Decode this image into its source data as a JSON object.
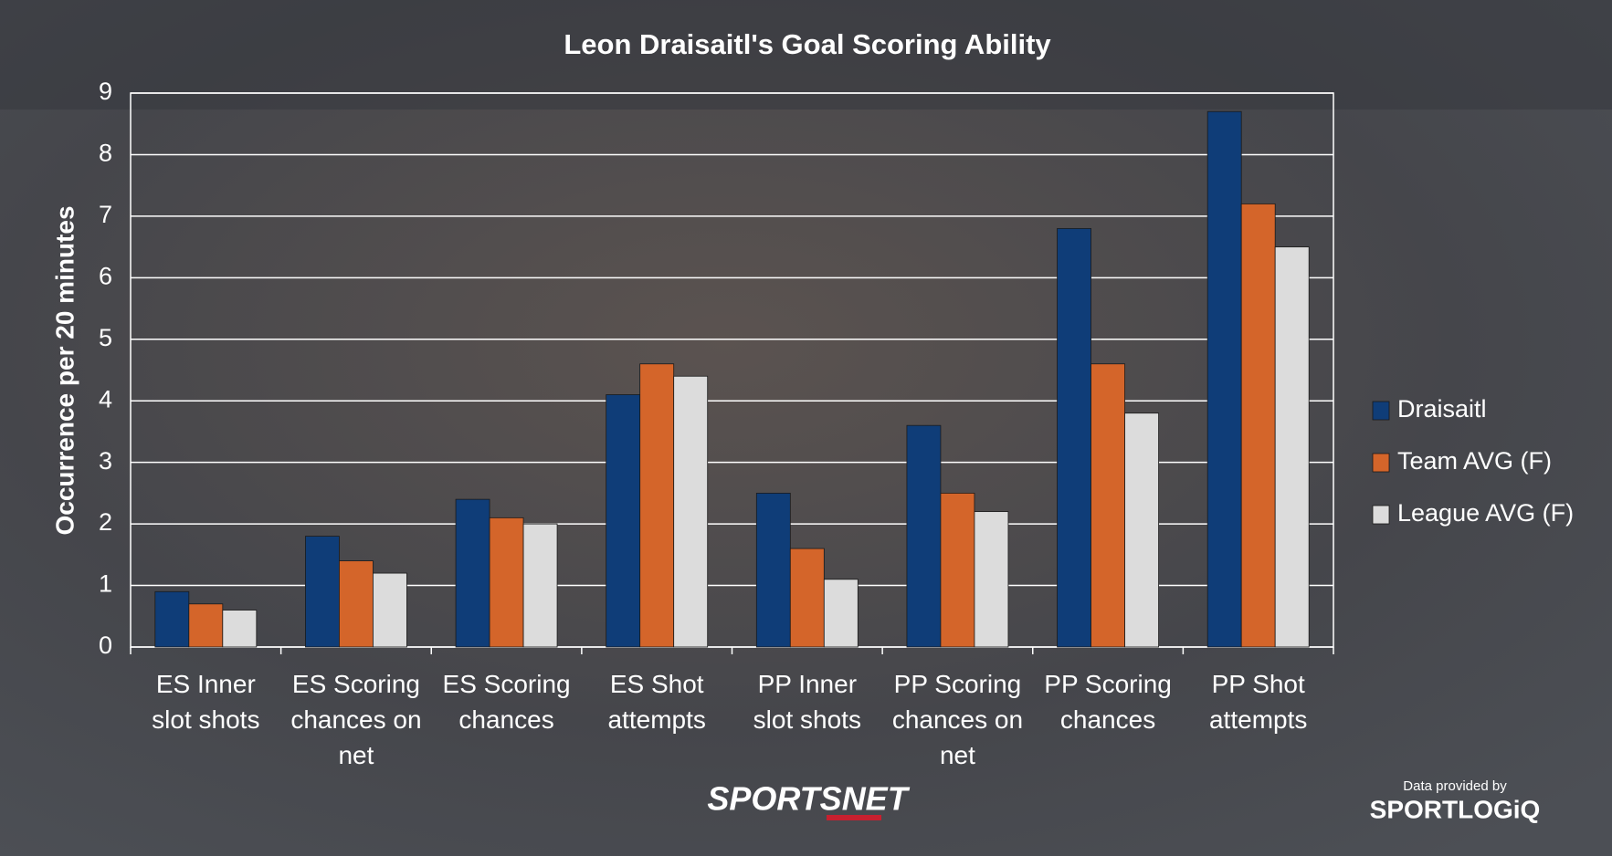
{
  "chart_data": {
    "type": "bar",
    "title": "Leon Draisaitl's Goal Scoring Ability",
    "y_label": "Occurrence per 20 minutes",
    "categories": [
      "ES Inner slot shots",
      "ES Scoring chances on net",
      "ES Scoring chances",
      "ES Shot attempts",
      "PP Inner slot shots",
      "PP Scoring chances on net",
      "PP Scoring chances",
      "PP Shot attempts"
    ],
    "series": [
      {
        "name": "Draisaitl",
        "color": "#0f3d78",
        "values": [
          0.9,
          1.8,
          2.4,
          4.1,
          2.5,
          3.6,
          6.8,
          8.7
        ]
      },
      {
        "name": "Team AVG (F)",
        "color": "#d4652a",
        "values": [
          0.7,
          1.4,
          2.1,
          4.6,
          1.6,
          2.5,
          4.6,
          7.2
        ]
      },
      {
        "name": "League AVG (F)",
        "color": "#dcdcdc",
        "values": [
          0.6,
          1.2,
          2.0,
          4.4,
          1.1,
          2.2,
          3.8,
          6.5
        ]
      }
    ],
    "ylim": [
      0,
      9
    ],
    "yticks": [
      0,
      1,
      2,
      3,
      4,
      5,
      6,
      7,
      8,
      9
    ],
    "grid": true,
    "legend": "right"
  },
  "credits": {
    "network": "SPORTSNET",
    "source_label": "Data provided by",
    "source": "SPORTLOGiQ"
  }
}
